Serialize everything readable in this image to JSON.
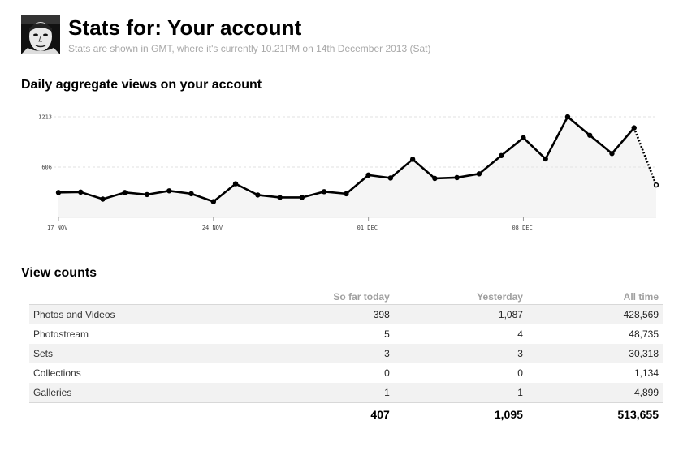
{
  "header": {
    "title": "Stats for: Your account",
    "subtitle": "Stats are shown in GMT, where it's currently 10.21PM on 14th December 2013 (Sat)"
  },
  "chart_section": {
    "title": "Daily aggregate views on your account"
  },
  "chart_data": {
    "type": "line",
    "title": "",
    "x": [
      "2013-11-17",
      "2013-11-18",
      "2013-11-19",
      "2013-11-20",
      "2013-11-21",
      "2013-11-22",
      "2013-11-23",
      "2013-11-24",
      "2013-11-25",
      "2013-11-26",
      "2013-11-27",
      "2013-11-28",
      "2013-11-29",
      "2013-11-30",
      "2013-12-01",
      "2013-12-02",
      "2013-12-03",
      "2013-12-04",
      "2013-12-05",
      "2013-12-06",
      "2013-12-07",
      "2013-12-08",
      "2013-12-09",
      "2013-12-10",
      "2013-12-11",
      "2013-12-12",
      "2013-12-13",
      "2013-12-14"
    ],
    "series": [
      {
        "values": [
          300,
          305,
          220,
          300,
          275,
          320,
          285,
          190,
          405,
          270,
          240,
          240,
          310,
          285,
          510,
          475,
          700,
          470,
          480,
          525,
          745,
          960,
          705,
          1213,
          990,
          770,
          1080,
          390
        ]
      }
    ],
    "yticks": [
      606,
      1213
    ],
    "ylim": [
      0,
      1213
    ],
    "xticks": [
      {
        "date": "2013-11-17",
        "label": "17 NOV"
      },
      {
        "date": "2013-11-24",
        "label": "24 NOV"
      },
      {
        "date": "2013-12-01",
        "label": "01 DEC"
      },
      {
        "date": "2013-12-08",
        "label": "08 DEC"
      }
    ],
    "partial_last_point": true,
    "grid": true,
    "line_color": "#000000",
    "area_color": "#f5f5f5"
  },
  "view_counts": {
    "title": "View counts",
    "columns": [
      "So far today",
      "Yesterday",
      "All time"
    ],
    "rows": [
      {
        "label": "Photos and Videos",
        "values": [
          "398",
          "1,087",
          "428,569"
        ]
      },
      {
        "label": "Photostream",
        "values": [
          "5",
          "4",
          "48,735"
        ]
      },
      {
        "label": "Sets",
        "values": [
          "3",
          "3",
          "30,318"
        ]
      },
      {
        "label": "Collections",
        "values": [
          "0",
          "0",
          "1,134"
        ]
      },
      {
        "label": "Galleries",
        "values": [
          "1",
          "1",
          "4,899"
        ]
      }
    ],
    "totals": [
      "407",
      "1,095",
      "513,655"
    ]
  }
}
